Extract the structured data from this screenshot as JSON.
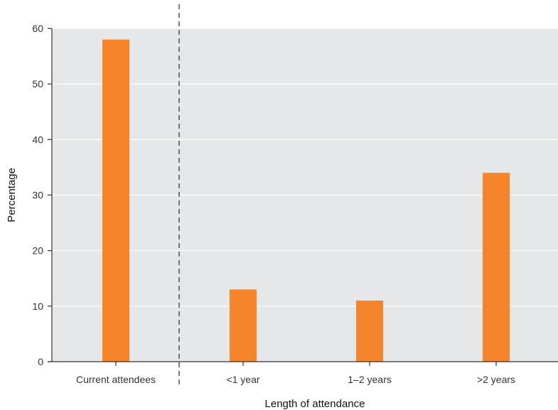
{
  "chart_data": {
    "type": "bar",
    "title": "",
    "xlabel": "Length of attendance",
    "ylabel": "Percentage",
    "categories": [
      "Current attendees",
      "<1 year",
      "1–2 years",
      ">2 years"
    ],
    "values": [
      58,
      13,
      11,
      34
    ],
    "ylim": [
      0,
      60
    ],
    "yticks": [
      0,
      10,
      20,
      30,
      40,
      50,
      60
    ],
    "grid": true,
    "legend": "none",
    "separator_after_category": 0,
    "colors": {
      "bar": "#F5842A",
      "plot_background": "#E6E7E9",
      "gridline": "#FFFFFF",
      "axis": "#333333",
      "separator": "#444444"
    }
  }
}
